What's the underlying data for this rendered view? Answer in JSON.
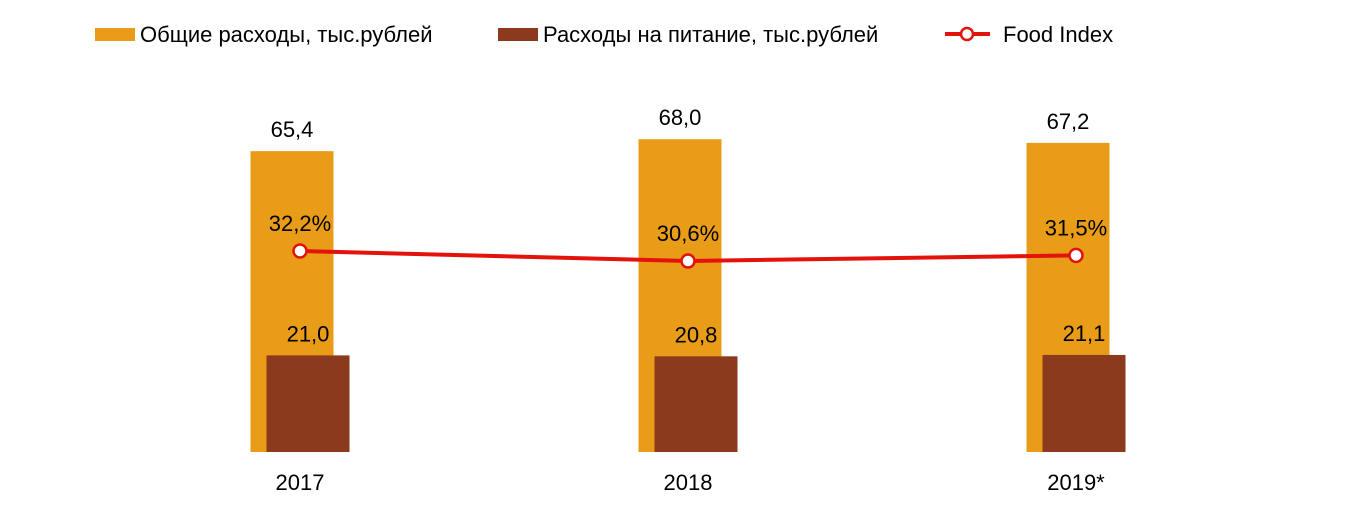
{
  "chart_data": {
    "type": "bar",
    "categories": [
      "2017",
      "2018",
      "2019*"
    ],
    "series": [
      {
        "name": "Общие расходы, тыс.рублей",
        "kind": "bar",
        "color": "#E99C18",
        "values": [
          65.4,
          68.0,
          67.2
        ],
        "labels": [
          "65,4",
          "68,0",
          "67,2"
        ]
      },
      {
        "name": "Расходы на питание, тыс.рублей",
        "kind": "bar",
        "color": "#8B3A1E",
        "values": [
          21.0,
          20.8,
          21.1
        ],
        "labels": [
          "21,0",
          "20,8",
          "21,1"
        ]
      },
      {
        "name": "Food Index",
        "kind": "line",
        "color": "#E3120B",
        "values": [
          32.2,
          30.6,
          31.5
        ],
        "labels": [
          "32,2%",
          "30,6%",
          "31,5%"
        ]
      }
    ],
    "legend": {
      "position": "top-left"
    },
    "grid": false
  }
}
